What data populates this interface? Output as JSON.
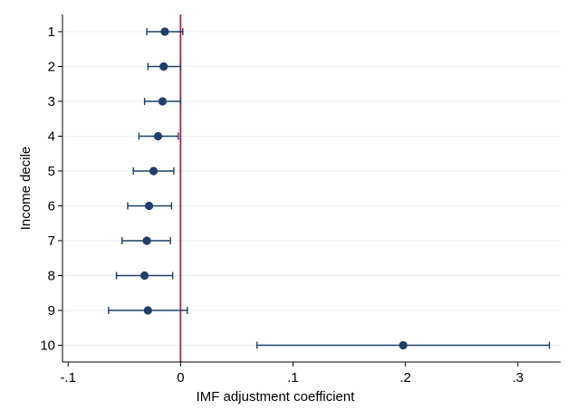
{
  "chart_data": {
    "type": "scatter",
    "subtype": "coefficient-plot",
    "xlabel": "IMF adjustment coefficient",
    "ylabel": "Income decile",
    "xlim": [
      -0.105,
      0.338
    ],
    "x_ticks": [
      -0.1,
      0,
      0.1,
      0.2,
      0.3
    ],
    "x_tick_labels": [
      "-.1",
      "0",
      ".1",
      ".2",
      ".3"
    ],
    "y_ticks": [
      1,
      2,
      3,
      4,
      5,
      6,
      7,
      8,
      9,
      10
    ],
    "y_tick_labels": [
      "1",
      "2",
      "3",
      "4",
      "5",
      "6",
      "7",
      "8",
      "9",
      "10"
    ],
    "y_reversed": true,
    "grid": "horizontal",
    "reference_line": {
      "x": 0,
      "color": "#b0204a"
    },
    "series": [
      {
        "color": "#1f3f66",
        "points": [
          {
            "decile": 1,
            "estimate": -0.014,
            "ci_low": -0.03,
            "ci_high": 0.002
          },
          {
            "decile": 2,
            "estimate": -0.015,
            "ci_low": -0.029,
            "ci_high": 0.0
          },
          {
            "decile": 3,
            "estimate": -0.016,
            "ci_low": -0.032,
            "ci_high": 0.0
          },
          {
            "decile": 4,
            "estimate": -0.02,
            "ci_low": -0.037,
            "ci_high": -0.002
          },
          {
            "decile": 5,
            "estimate": -0.024,
            "ci_low": -0.042,
            "ci_high": -0.006
          },
          {
            "decile": 6,
            "estimate": -0.028,
            "ci_low": -0.047,
            "ci_high": -0.008
          },
          {
            "decile": 7,
            "estimate": -0.03,
            "ci_low": -0.052,
            "ci_high": -0.009
          },
          {
            "decile": 8,
            "estimate": -0.032,
            "ci_low": -0.057,
            "ci_high": -0.007
          },
          {
            "decile": 9,
            "estimate": -0.029,
            "ci_low": -0.064,
            "ci_high": 0.006
          },
          {
            "decile": 10,
            "estimate": 0.198,
            "ci_low": 0.068,
            "ci_high": 0.328
          }
        ]
      }
    ]
  }
}
